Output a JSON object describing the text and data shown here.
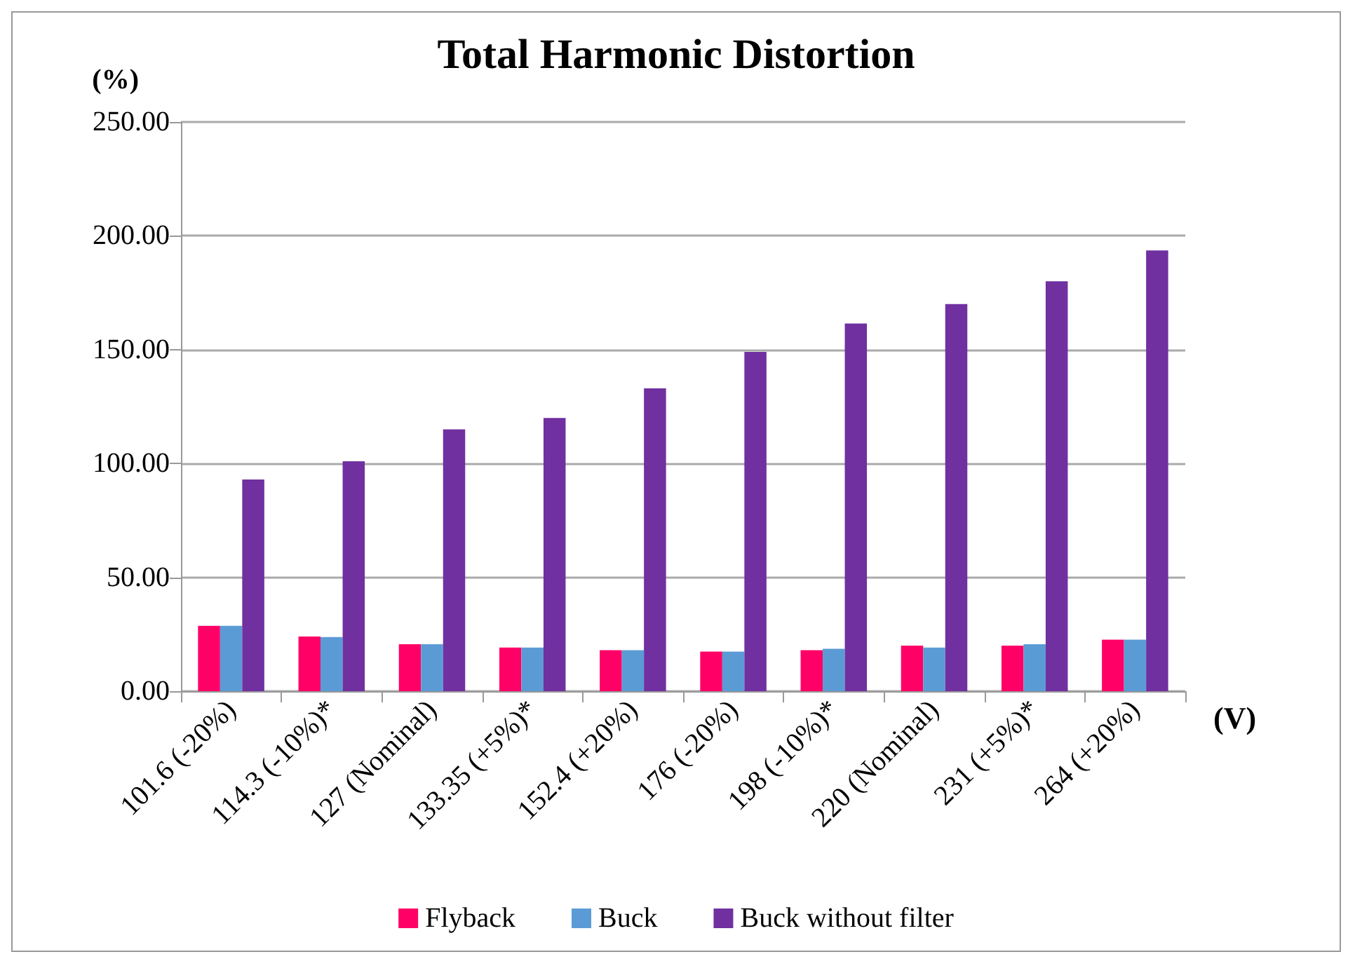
{
  "chart_data": {
    "type": "bar",
    "title": "Total Harmonic Distortion",
    "xlabel": "(V)",
    "ylabel": "(%)",
    "categories": [
      "101.6 (-20%)",
      "114.3 (-10%)*",
      "127 (Nominal)",
      "133.35 (+5%)*",
      "152.4 (+20%)",
      "176 (-20%)",
      "198 (-10%)*",
      "220 (Nominal)",
      "231 (+5%)*",
      "264 (+20%)"
    ],
    "series": [
      {
        "name": "Flyback",
        "color": "#ff0066",
        "values": [
          28.7,
          24,
          20.6,
          19.2,
          18,
          17.4,
          18,
          20,
          20,
          22.6
        ]
      },
      {
        "name": "Buck",
        "color": "#5b9bd5",
        "values": [
          28.7,
          23.8,
          20.6,
          19.2,
          18,
          17.4,
          18.6,
          19.2,
          20.6,
          22.6
        ]
      },
      {
        "name": "Buck without filter",
        "color": "#7030a0",
        "values": [
          93,
          101,
          115,
          120,
          133,
          149,
          161.5,
          170,
          180,
          193.6
        ]
      }
    ],
    "ylim": [
      0,
      250
    ],
    "yticks": [
      {
        "value": 0,
        "label": "0.00"
      },
      {
        "value": 50,
        "label": "50.00"
      },
      {
        "value": 100,
        "label": "100.00"
      },
      {
        "value": 150,
        "label": "150.00"
      },
      {
        "value": 200,
        "label": "200.00"
      },
      {
        "value": 250,
        "label": "250.00"
      }
    ],
    "grid": "y",
    "legend": "bottom"
  }
}
